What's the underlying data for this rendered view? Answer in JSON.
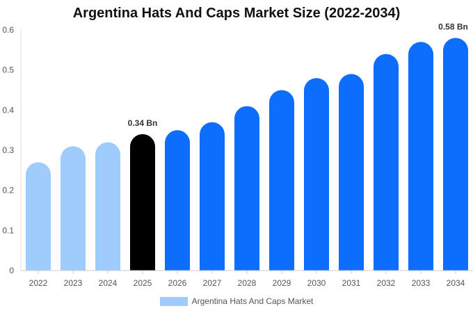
{
  "chart_data": {
    "type": "bar",
    "title": "Argentina Hats And Caps Market Size (2022-2034)",
    "xlabel": "",
    "ylabel": "",
    "categories": [
      "2022",
      "2023",
      "2024",
      "2025",
      "2026",
      "2027",
      "2028",
      "2029",
      "2030",
      "2031",
      "2032",
      "2033",
      "2034"
    ],
    "series": [
      {
        "name": "Argentina Hats And Caps Market",
        "values": [
          0.27,
          0.31,
          0.32,
          0.34,
          0.35,
          0.37,
          0.41,
          0.45,
          0.48,
          0.49,
          0.54,
          0.57,
          0.58
        ]
      }
    ],
    "ylim": [
      0,
      0.6
    ],
    "yticks": [
      0,
      0.1,
      0.2,
      0.3,
      0.4,
      0.5,
      0.6
    ],
    "ytick_labels": [
      "0",
      "0.1",
      "0.2",
      "0.3",
      "0.4",
      "0.5",
      "0.6"
    ],
    "data_labels": [
      {
        "category": "2025",
        "text": "0.34 Bn"
      },
      {
        "category": "2034",
        "text": "0.58 Bn"
      }
    ],
    "colors": {
      "historical": "#a0cbfd",
      "current": "#000000",
      "forecast": "#0d6efd",
      "legend": "#a0cbfd"
    },
    "historical_categories": [
      "2022",
      "2023",
      "2024"
    ],
    "current_category": "2025",
    "grid": false,
    "legend_position": "bottom-center"
  }
}
